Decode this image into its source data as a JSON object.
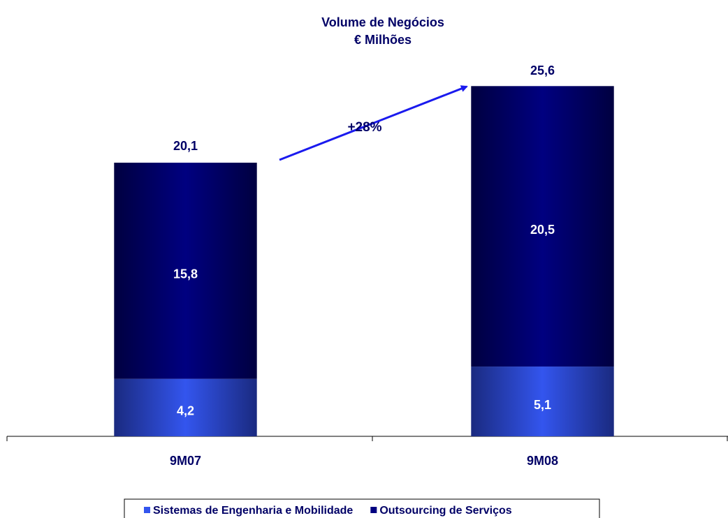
{
  "chart_data": {
    "type": "stacked-bar",
    "title": [
      "Volume de Negócios",
      "€ Milhões"
    ],
    "categories": [
      "9M07",
      "9M08"
    ],
    "series": [
      {
        "name": "Sistemas de Engenharia e Mobilidade",
        "color": "#3355ee",
        "values": [
          4.2,
          5.1
        ],
        "value_labels": [
          "4,2",
          "5,1"
        ]
      },
      {
        "name": "Outsourcing de Serviços",
        "color": "#000080",
        "values": [
          15.8,
          20.5
        ],
        "value_labels": [
          "15,8",
          "20,5"
        ]
      }
    ],
    "totals": [
      20.1,
      25.6
    ],
    "total_labels": [
      "20,1",
      "25,6"
    ],
    "annotation": "+28%",
    "ylim": [
      0,
      27.3
    ],
    "legend": "bottom"
  }
}
